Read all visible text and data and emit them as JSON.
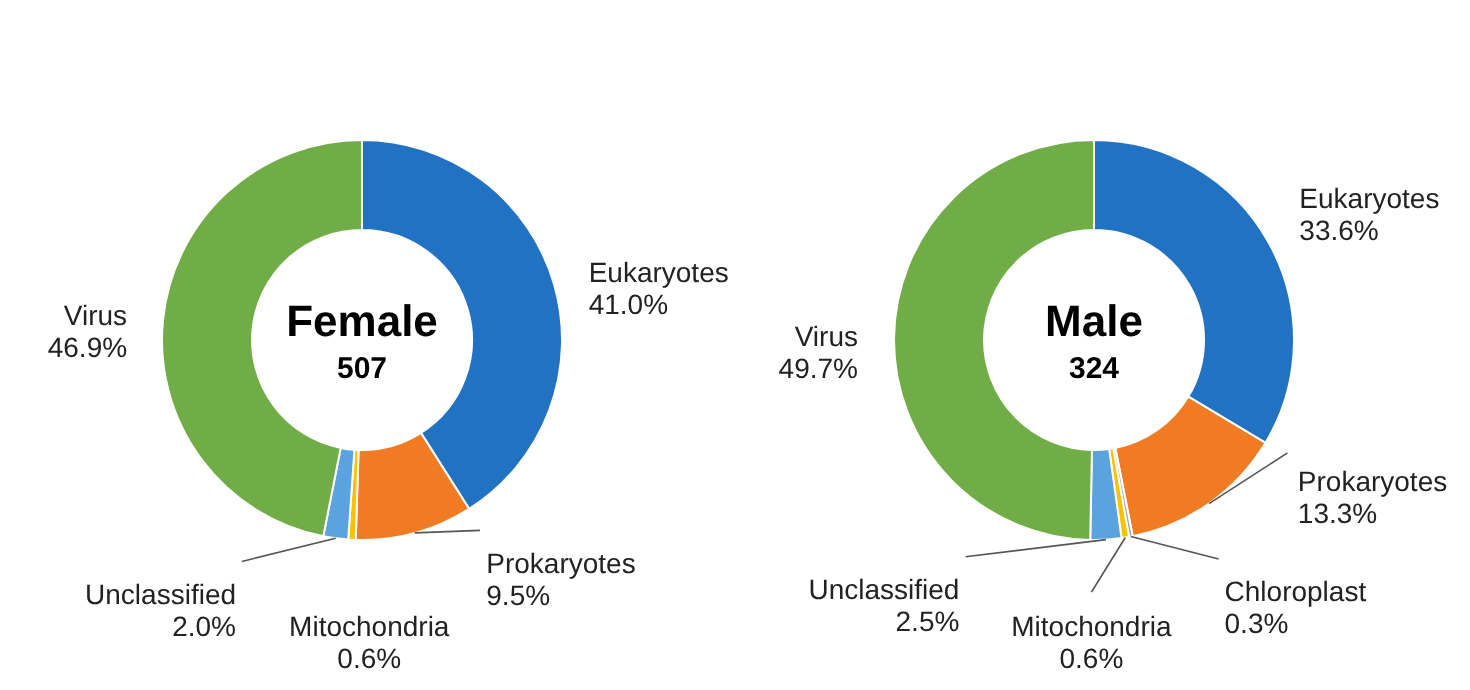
{
  "chart_data": [
    {
      "type": "donut",
      "title": "Female",
      "subtitle": "507",
      "categories": [
        "Eukaryotes",
        "Prokaryotes",
        "Mitochondria",
        "Unclassified",
        "Virus"
      ],
      "values": [
        41.0,
        9.5,
        0.6,
        2.0,
        46.9
      ],
      "value_labels": [
        "41.0%",
        "9.5%",
        "0.6%",
        "2.0%",
        "46.9%"
      ],
      "colors": [
        "#2272c3",
        "#f07b22",
        "#ffc000",
        "#5ba3de",
        "#70ad47"
      ]
    },
    {
      "type": "donut",
      "title": "Male",
      "subtitle": "324",
      "categories": [
        "Eukaryotes",
        "Prokaryotes",
        "Chloroplast",
        "Mitochondria",
        "Unclassified",
        "Virus"
      ],
      "values": [
        33.6,
        13.3,
        0.3,
        0.6,
        2.5,
        49.7
      ],
      "value_labels": [
        "33.6%",
        "13.3%",
        "0.3%",
        "0.6%",
        "2.5%",
        "49.7%"
      ],
      "colors": [
        "#2272c3",
        "#f07b22",
        "#a5a5a5",
        "#ffc000",
        "#5ba3de",
        "#70ad47"
      ]
    }
  ]
}
